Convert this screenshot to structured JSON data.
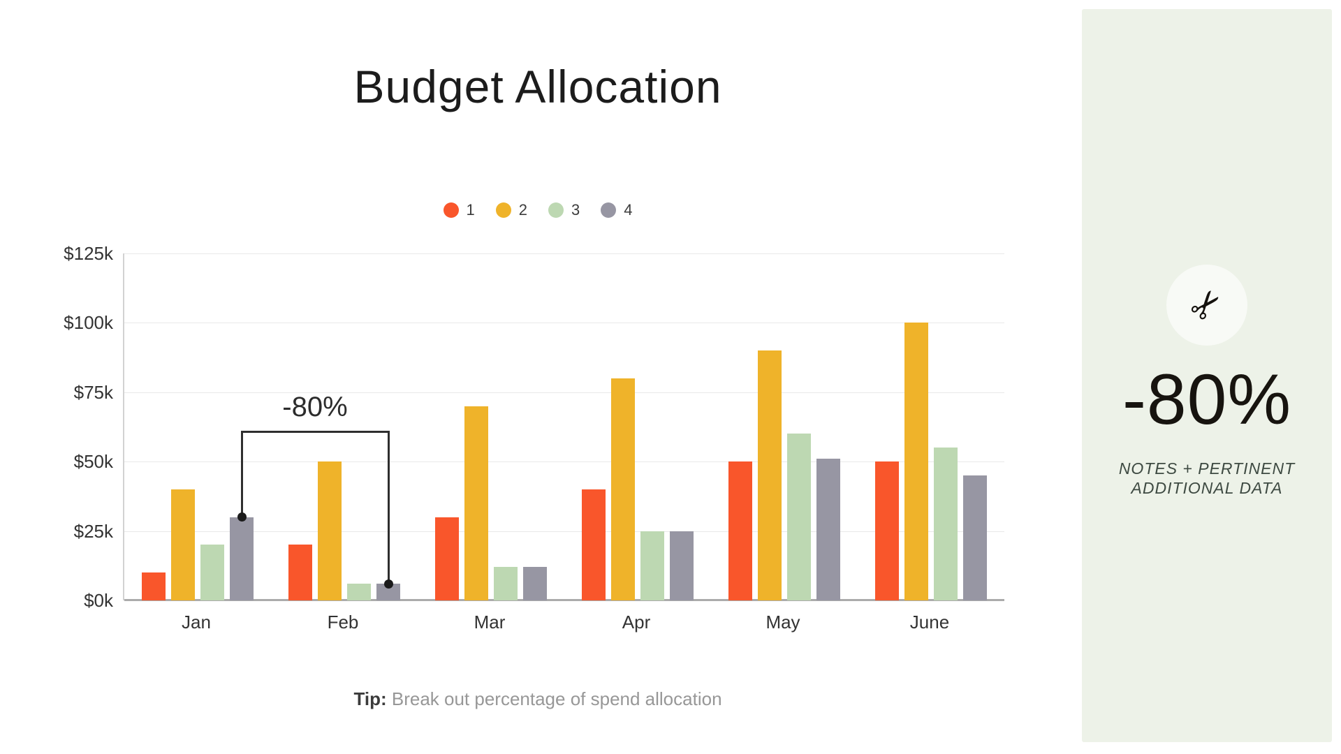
{
  "title": "Budget Allocation",
  "legend": [
    {
      "label": "1",
      "color": "#f9562b"
    },
    {
      "label": "2",
      "color": "#efb32a"
    },
    {
      "label": "3",
      "color": "#bdd8b2"
    },
    {
      "label": "4",
      "color": "#9796a3"
    }
  ],
  "chart_data": {
    "type": "bar",
    "title": "Budget Allocation",
    "categories": [
      "Jan",
      "Feb",
      "Mar",
      "Apr",
      "May",
      "June"
    ],
    "series": [
      {
        "name": "1",
        "color": "#f9562b",
        "values": [
          10,
          20,
          30,
          40,
          50,
          50
        ]
      },
      {
        "name": "2",
        "color": "#efb32a",
        "values": [
          40,
          50,
          70,
          80,
          90,
          100
        ]
      },
      {
        "name": "3",
        "color": "#bdd8b2",
        "values": [
          20,
          6,
          12,
          25,
          60,
          55
        ]
      },
      {
        "name": "4",
        "color": "#9796a3",
        "values": [
          30,
          6,
          12,
          25,
          51,
          45
        ]
      }
    ],
    "y_ticks": [
      "$0k",
      "$25k",
      "$50k",
      "$75k",
      "$100k",
      "$125k"
    ],
    "y_tick_values": [
      0,
      25,
      50,
      75,
      100,
      125
    ],
    "ylim": [
      0,
      125
    ],
    "grid": true,
    "legend_position": "top-center",
    "annotation": {
      "text": "-80%",
      "from_category": "Jan",
      "to_category": "Feb",
      "series": "4",
      "bracket_value": 61
    }
  },
  "tip": {
    "label": "Tip:",
    "text": " Break out percentage of spend allocation"
  },
  "sidebar": {
    "icon": "scissors-icon",
    "icon_glyph": "✂",
    "stat": "-80%",
    "note_line1": "NOTES + PERTINENT",
    "note_line2": "ADDITIONAL DATA",
    "panel_color": "#edf2e8"
  }
}
